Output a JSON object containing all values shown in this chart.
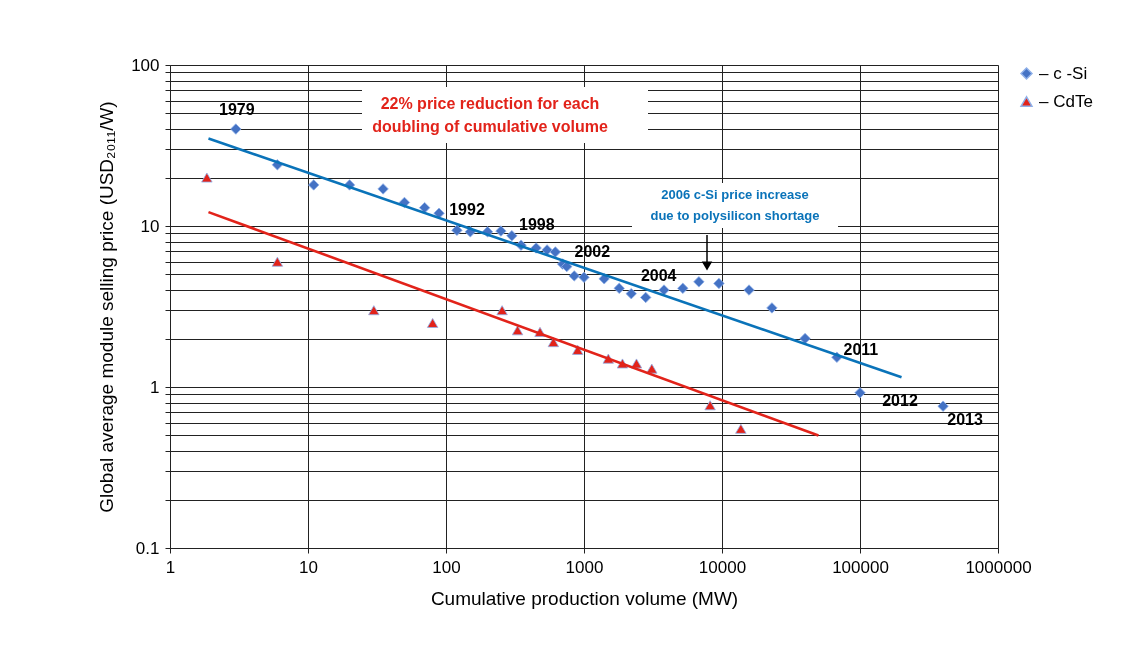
{
  "chart_data": {
    "type": "scatter",
    "xlabel": "Cumulative production volume (MW)",
    "ylabel": "Global average module selling price (USD₂₀₁₁/W)",
    "log": "xy",
    "xlim": [
      1,
      1000000
    ],
    "xticks": [
      1,
      10,
      100,
      1000,
      10000,
      100000,
      1000000
    ],
    "ylim": [
      0.1,
      100
    ],
    "yticks": [
      0.1,
      {
        "value": 0.2,
        "label": null
      },
      {
        "value": 0.3,
        "label": null
      },
      {
        "value": 0.4,
        "label": null
      },
      {
        "value": 0.5,
        "label": null
      },
      {
        "value": 0.6,
        "label": null
      },
      {
        "value": 0.7,
        "label": null
      },
      {
        "value": 0.8,
        "label": null
      },
      {
        "value": 0.9,
        "label": null
      },
      1,
      {
        "value": 2,
        "label": null
      },
      {
        "value": 3,
        "label": null
      },
      {
        "value": 4,
        "label": null
      },
      {
        "value": 5,
        "label": null
      },
      {
        "value": 6,
        "label": null
      },
      {
        "value": 7,
        "label": null
      },
      {
        "value": 8,
        "label": null
      },
      {
        "value": 9,
        "label": null
      },
      10,
      {
        "value": 20,
        "label": null
      },
      {
        "value": 30,
        "label": null
      },
      {
        "value": 40,
        "label": null
      },
      {
        "value": 50,
        "label": null
      },
      {
        "value": 60,
        "label": null
      },
      {
        "value": 70,
        "label": null
      },
      {
        "value": 80,
        "label": null
      },
      {
        "value": 90,
        "label": null
      },
      100
    ],
    "grid": true,
    "legend": "right",
    "series": [
      {
        "name": "– c -Si",
        "marker": "diamond",
        "color": "#4472c4",
        "x": [
          3,
          6,
          11,
          20,
          35,
          50,
          70,
          89,
          120,
          150,
          200,
          250,
          300,
          350,
          450,
          540,
          620,
          700,
          750,
          850,
          1000,
          1400,
          1800,
          2200,
          2800,
          3800,
          5200,
          6800,
          9500,
          15700,
          23000,
          40000,
          68000,
          100000,
          400000
        ],
        "values": [
          40,
          24,
          18,
          18,
          17,
          14,
          13,
          12,
          9.4,
          9.2,
          9.2,
          9.3,
          8.7,
          7.6,
          7.3,
          7.1,
          6.9,
          5.8,
          5.6,
          4.9,
          4.8,
          4.7,
          4.1,
          3.8,
          3.6,
          4.0,
          4.1,
          4.5,
          4.4,
          4.0,
          3.1,
          2.0,
          1.53,
          0.92,
          0.76
        ]
      },
      {
        "name": "– CdTe",
        "marker": "triangle",
        "color": "#e2231a",
        "x": [
          1.85,
          6,
          30,
          80,
          255,
          330,
          480,
          600,
          900,
          1500,
          1900,
          2400,
          3100,
          8200,
          13700
        ],
        "values": [
          20,
          6.0,
          3.0,
          2.5,
          3.0,
          2.25,
          2.2,
          1.9,
          1.7,
          1.5,
          1.4,
          1.4,
          1.3,
          0.77,
          0.55
        ]
      },
      {
        "type": "line",
        "marker": "none",
        "line_style": "solid",
        "color": "#0a73b9",
        "x": [
          1.9,
          200000
        ],
        "values": [
          35,
          1.15
        ]
      },
      {
        "type": "line",
        "marker": "none",
        "line_style": "solid",
        "color": "#e2231a",
        "x": [
          1.9,
          50000
        ],
        "values": [
          12.2,
          0.5
        ]
      }
    ],
    "annotations": [
      "22% price reduction for each\ndoubling of cumulative volume",
      "2006 c-Si price increase\ndue to polysilicon shortage",
      {
        "text": "1979",
        "x": 3,
        "y": 40
      },
      {
        "text": "1992",
        "x": 89,
        "y": 12
      },
      {
        "text": "1998",
        "x": 300,
        "y": 8.7
      },
      {
        "text": "2002",
        "x": 620,
        "y": 6.9
      },
      {
        "text": "2004",
        "x": 2800,
        "y": 3.6
      },
      {
        "text": "2011",
        "x": 68000,
        "y": 1.53
      },
      {
        "text": "2012",
        "x": 100000,
        "y": 0.92
      },
      {
        "text": "2013",
        "x": 400000,
        "y": 0.76
      }
    ]
  }
}
